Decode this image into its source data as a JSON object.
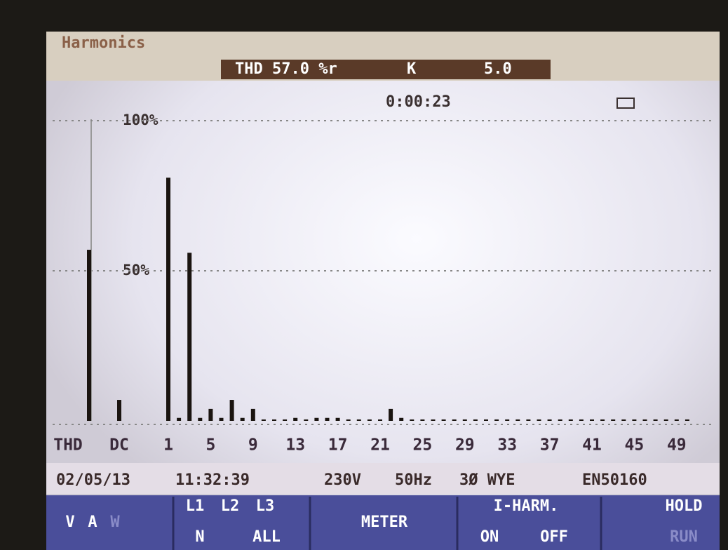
{
  "header": {
    "title": "Harmonics",
    "thd": "THD 57.0 %r",
    "k_label": "K",
    "k_value": "5.0",
    "timer": "0:00:23"
  },
  "chart_data": {
    "type": "bar",
    "color": "#1a1410",
    "categories": [
      "THD",
      "DC",
      "1",
      null,
      null,
      null,
      "5",
      null,
      null,
      null,
      "9",
      null,
      null,
      null,
      "13",
      null,
      null,
      null,
      "17",
      null,
      null,
      null,
      "21",
      null,
      null,
      null,
      "25",
      null,
      null,
      null,
      "29",
      null,
      null,
      null,
      "33",
      null,
      null,
      null,
      "37",
      null,
      null,
      null,
      "41",
      null,
      null,
      null,
      "45",
      null,
      null,
      null,
      "49",
      null
    ],
    "values": [
      57,
      7,
      81,
      1,
      56,
      1,
      4,
      1,
      7,
      1,
      4,
      0.5,
      0.5,
      0.5,
      1,
      0.5,
      1,
      1,
      1,
      0.5,
      0.5,
      0.5,
      0.5,
      4,
      1,
      0.5,
      0.5,
      0.5,
      0.5,
      0.5,
      0.5,
      0.5,
      0.5,
      0.5,
      0.5,
      0.5,
      0.5,
      0.5,
      0.5,
      0.5,
      0.5,
      0.5,
      0.5,
      0.5,
      0.5,
      0.5,
      0.5,
      0.5,
      0.5,
      0.5,
      0.5,
      0.5
    ],
    "ylim": [
      0,
      100
    ],
    "yticks": [
      {
        "value": 50,
        "label": "50%"
      },
      {
        "value": 100,
        "label": "100%"
      }
    ],
    "grid": true
  },
  "status": {
    "date": "02/05/13",
    "time": "11:32:39",
    "voltage": "230V",
    "frequency": "50Hz",
    "config": "3Ø WYE",
    "standard": "EN50160"
  },
  "softkeys": [
    [
      "V",
      "A",
      "W"
    ],
    [
      "L1",
      "L2",
      "L3",
      "N",
      "ALL"
    ],
    [
      "METER"
    ],
    [
      "I-HARM.",
      "ON",
      "OFF"
    ],
    [
      "HOLD",
      "RUN"
    ]
  ]
}
